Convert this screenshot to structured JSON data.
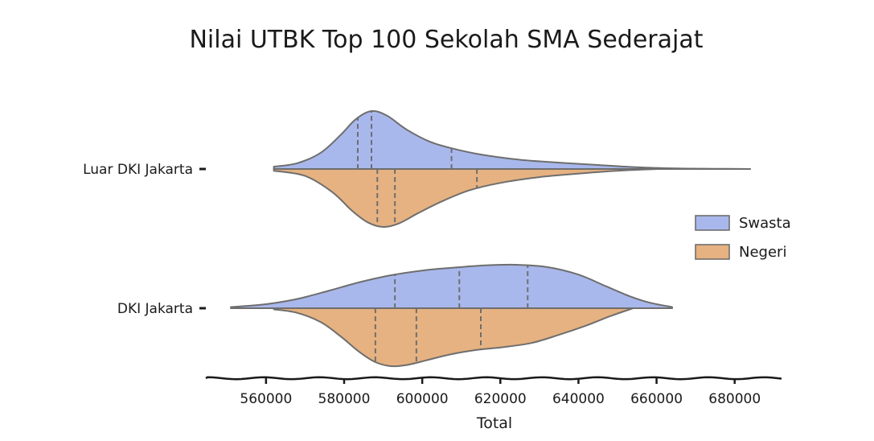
{
  "chart_data": {
    "type": "violin",
    "title": "Nilai UTBK Top 100 Sekolah SMA Sederajat",
    "xlabel": "Total",
    "ylabel": "",
    "xlim": [
      545000,
      692000
    ],
    "x_ticks": [
      560000,
      580000,
      600000,
      620000,
      640000,
      660000,
      680000
    ],
    "x_tick_labels": [
      "560000",
      "580000",
      "600000",
      "620000",
      "640000",
      "660000",
      "680000"
    ],
    "categories": [
      "Luar DKI Jakarta",
      "DKI Jakarta"
    ],
    "split": true,
    "inner": "quartile",
    "legend_position": "right",
    "grid": false,
    "series": [
      {
        "name": "Swasta",
        "color": "#a9b8ec",
        "side": "upper",
        "groups": [
          {
            "category": "Luar DKI Jakarta",
            "extent": [
              562000,
              684000
            ],
            "density": [
              [
                562000,
                0.04
              ],
              [
                568000,
                0.1
              ],
              [
                574000,
                0.28
              ],
              [
                579000,
                0.58
              ],
              [
                583000,
                0.86
              ],
              [
                587000,
                1.0
              ],
              [
                591000,
                0.92
              ],
              [
                596000,
                0.68
              ],
              [
                602000,
                0.47
              ],
              [
                608000,
                0.35
              ],
              [
                615000,
                0.25
              ],
              [
                625000,
                0.16
              ],
              [
                635000,
                0.11
              ],
              [
                645000,
                0.07
              ],
              [
                655000,
                0.03
              ],
              [
                665000,
                0.01
              ],
              [
                675000,
                0.004
              ],
              [
                684000,
                0.0
              ]
            ],
            "quartiles": [
              583500,
              587000,
              607500
            ]
          },
          {
            "category": "DKI Jakarta",
            "extent": [
              551000,
              664000
            ],
            "density": [
              [
                551000,
                0.02
              ],
              [
                560000,
                0.07
              ],
              [
                568000,
                0.16
              ],
              [
                576000,
                0.3
              ],
              [
                584000,
                0.45
              ],
              [
                592000,
                0.57
              ],
              [
                600000,
                0.65
              ],
              [
                608000,
                0.7
              ],
              [
                616000,
                0.74
              ],
              [
                624000,
                0.75
              ],
              [
                632000,
                0.71
              ],
              [
                640000,
                0.58
              ],
              [
                647000,
                0.38
              ],
              [
                653000,
                0.21
              ],
              [
                658000,
                0.1
              ],
              [
                664000,
                0.02
              ]
            ],
            "quartiles": [
              593000,
              609500,
              627000
            ]
          }
        ]
      },
      {
        "name": "Negeri",
        "color": "#e6b281",
        "side": "lower",
        "groups": [
          {
            "category": "Luar DKI Jakarta",
            "extent": [
              562000,
              660000
            ],
            "density": [
              [
                562000,
                0.03
              ],
              [
                570000,
                0.12
              ],
              [
                577000,
                0.4
              ],
              [
                582000,
                0.72
              ],
              [
                586000,
                0.92
              ],
              [
                590000,
                1.0
              ],
              [
                594000,
                0.94
              ],
              [
                599000,
                0.76
              ],
              [
                605000,
                0.56
              ],
              [
                612000,
                0.37
              ],
              [
                620000,
                0.24
              ],
              [
                630000,
                0.14
              ],
              [
                640000,
                0.08
              ],
              [
                650000,
                0.03
              ],
              [
                660000,
                0.0
              ]
            ],
            "quartiles": [
              588500,
              593000,
              614000
            ]
          },
          {
            "category": "DKI Jakarta",
            "extent": [
              562000,
              654000
            ],
            "density": [
              [
                562000,
                0.02
              ],
              [
                568000,
                0.08
              ],
              [
                574000,
                0.24
              ],
              [
                579000,
                0.48
              ],
              [
                584000,
                0.76
              ],
              [
                588000,
                0.93
              ],
              [
                592000,
                1.0
              ],
              [
                596000,
                0.98
              ],
              [
                601000,
                0.9
              ],
              [
                607000,
                0.8
              ],
              [
                614000,
                0.72
              ],
              [
                621000,
                0.67
              ],
              [
                628000,
                0.6
              ],
              [
                635000,
                0.46
              ],
              [
                642000,
                0.3
              ],
              [
                648000,
                0.14
              ],
              [
                654000,
                0.0
              ]
            ],
            "quartiles": [
              588000,
              598500,
              615000
            ]
          }
        ]
      }
    ]
  }
}
